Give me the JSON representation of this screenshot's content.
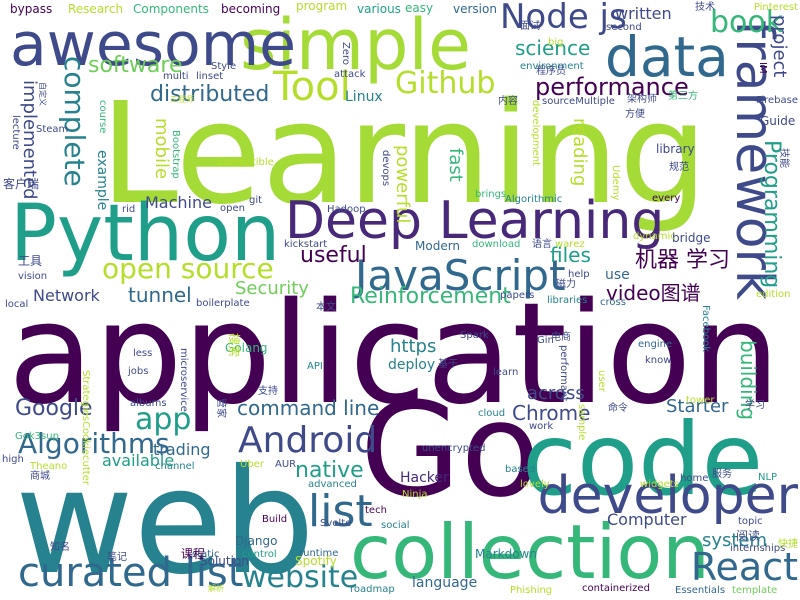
{
  "palette": [
    "#440154",
    "#482878",
    "#3e4a89",
    "#31688e",
    "#26828e",
    "#1f9e89",
    "#35b779",
    "#6ece58",
    "#b5de2b",
    "#fde725"
  ],
  "words": [
    {
      "text": "application",
      "color": "#440154"
    },
    {
      "text": "Learning",
      "color": "#a5db36"
    },
    {
      "text": "Go",
      "color": "#440154"
    },
    {
      "text": "web",
      "color": "#26828e"
    },
    {
      "text": "code",
      "color": "#1f9e89"
    },
    {
      "text": "collection",
      "color": "#35b779"
    },
    {
      "text": "Python",
      "color": "#1f9e89"
    },
    {
      "text": "simple",
      "color": "#a5db36"
    },
    {
      "text": "awesome",
      "color": "#3e4a89"
    },
    {
      "text": "data",
      "color": "#31688e"
    },
    {
      "text": "Deep Learning",
      "color": "#482878"
    },
    {
      "text": "framework",
      "color": "#3e4a89"
    },
    {
      "text": "developer",
      "color": "#3e4a89"
    },
    {
      "text": "JavaScript",
      "color": "#31688e"
    },
    {
      "text": "curated list",
      "color": "#31688e"
    },
    {
      "text": "Android",
      "color": "#3e4a89"
    },
    {
      "text": "React",
      "color": "#31688e"
    },
    {
      "text": "website",
      "color": "#26828e"
    },
    {
      "text": "list",
      "color": "#31688e"
    },
    {
      "text": "Tool",
      "color": "#b5de2b"
    },
    {
      "text": "Node js",
      "color": "#3e4a89"
    },
    {
      "text": "book",
      "color": "#35b779"
    },
    {
      "text": "Github",
      "color": "#b5de2b"
    },
    {
      "text": "complete",
      "color": "#26828e"
    },
    {
      "text": "open source",
      "color": "#b5de2b"
    },
    {
      "text": "app",
      "color": "#1f9e89"
    },
    {
      "text": "Algorithms",
      "color": "#31688e"
    },
    {
      "text": "software",
      "color": "#6ece58"
    },
    {
      "text": "performance",
      "color": "#440154"
    },
    {
      "text": "distributed",
      "color": "#31688e"
    },
    {
      "text": "Programming",
      "color": "#1f9e89"
    },
    {
      "text": "project",
      "color": "#3e4a89"
    },
    {
      "text": "written",
      "color": "#3e4a89"
    },
    {
      "text": "science",
      "color": "#1f9e89"
    },
    {
      "text": "机器 学习",
      "color": "#440154"
    },
    {
      "text": "Reinforcement",
      "color": "#35b779"
    },
    {
      "text": "tunnel",
      "color": "#31688e"
    },
    {
      "text": "Chrome",
      "color": "#3e4a89"
    },
    {
      "text": "command line",
      "color": "#31688e"
    },
    {
      "text": "Google",
      "color": "#3e4a89"
    },
    {
      "text": "native",
      "color": "#1f9e89"
    },
    {
      "text": "building",
      "color": "#35b779"
    },
    {
      "text": "system",
      "color": "#26828e"
    },
    {
      "text": "Starter",
      "color": "#31688e"
    },
    {
      "text": "useful",
      "color": "#440154"
    },
    {
      "text": "files",
      "color": "#1f9e89"
    },
    {
      "text": "video图谱",
      "color": "#440154"
    },
    {
      "text": "Security",
      "color": "#6ece58"
    },
    {
      "text": "across",
      "color": "#3e4a89"
    },
    {
      "text": "https",
      "color": "#26828e"
    },
    {
      "text": "mobile",
      "color": "#b5de2b"
    },
    {
      "text": "implemented",
      "color": "#3e4a89"
    },
    {
      "text": "available",
      "color": "#1f9e89"
    },
    {
      "text": "trading",
      "color": "#31688e"
    },
    {
      "text": "Machine",
      "color": "#3e4a89"
    },
    {
      "text": "Network",
      "color": "#3e4a89"
    },
    {
      "text": "Computer",
      "color": "#3e4a89"
    },
    {
      "text": "reading",
      "color": "#b5de2b"
    },
    {
      "text": "fast",
      "color": "#35b779"
    },
    {
      "text": "powerful",
      "color": "#b5de2b"
    },
    {
      "text": "Linux",
      "color": "#26828e"
    },
    {
      "text": "deploy",
      "color": "#26828e"
    },
    {
      "text": "example",
      "color": "#26828e"
    },
    {
      "text": "use",
      "color": "#31688e"
    },
    {
      "text": "Hacker",
      "color": "#482878"
    },
    {
      "text": "Spotify",
      "color": "#b5de2b"
    },
    {
      "text": "Django",
      "color": "#31688e"
    },
    {
      "text": "Golang",
      "color": "#35b779"
    },
    {
      "text": "Modern",
      "color": "#31688e"
    },
    {
      "text": "bridge",
      "color": "#3e4a89"
    },
    {
      "text": "Guide",
      "color": "#3e4a89"
    },
    {
      "text": "library",
      "color": "#3e4a89"
    },
    {
      "text": "language",
      "color": "#31688e"
    },
    {
      "text": "Markdown",
      "color": "#26828e"
    },
    {
      "text": "Solution",
      "color": "#3e4a89"
    },
    {
      "text": "Research",
      "color": "#b5de2b"
    },
    {
      "text": "Components",
      "color": "#35b779"
    },
    {
      "text": "bypass",
      "color": "#440154"
    },
    {
      "text": "becoming",
      "color": "#440154"
    },
    {
      "text": "program",
      "color": "#b5de2b"
    },
    {
      "text": "various",
      "color": "#1f9e89"
    },
    {
      "text": "easy",
      "color": "#35b779"
    },
    {
      "text": "version",
      "color": "#31688e"
    },
    {
      "text": "environment",
      "color": "#26828e"
    },
    {
      "text": "second",
      "color": "#3e4a89"
    },
    {
      "text": "Style",
      "color": "#3e4a89"
    },
    {
      "text": "lecture",
      "color": "#3e4a89"
    },
    {
      "text": "course",
      "color": "#35b779"
    },
    {
      "text": "Bootstrap",
      "color": "#35b779"
    },
    {
      "text": "git",
      "color": "#3e4a89"
    },
    {
      "text": "open",
      "color": "#3e4a89"
    },
    {
      "text": "rid",
      "color": "#3e4a89"
    },
    {
      "text": "Hadoop",
      "color": "#3e4a89"
    },
    {
      "text": "kickstart",
      "color": "#3e4a89"
    },
    {
      "text": "devops",
      "color": "#3e4a89"
    },
    {
      "text": "development",
      "color": "#b5de2b"
    },
    {
      "text": "Algorithmic",
      "color": "#26828e"
    },
    {
      "text": "brings",
      "color": "#35b779"
    },
    {
      "text": "Udemy",
      "color": "#b5de2b"
    },
    {
      "text": "every",
      "color": "#440154"
    },
    {
      "text": "download",
      "color": "#35b779"
    },
    {
      "text": "dynamic",
      "color": "#b5de2b"
    },
    {
      "text": "help",
      "color": "#3e4a89"
    },
    {
      "text": "papers",
      "color": "#3e4a89"
    },
    {
      "text": "libraries",
      "color": "#26828e"
    },
    {
      "text": "cross",
      "color": "#31688e"
    },
    {
      "text": "edition",
      "color": "#b5de2b"
    },
    {
      "text": "Facebook",
      "color": "#26828e"
    },
    {
      "text": "engine",
      "color": "#31688e"
    },
    {
      "text": "know",
      "color": "#3e4a89"
    },
    {
      "text": "API",
      "color": "#26828e"
    },
    {
      "text": "learn",
      "color": "#3e4a89"
    },
    {
      "text": "cloud",
      "color": "#26828e"
    },
    {
      "text": "work",
      "color": "#3e4a89"
    },
    {
      "text": "sample",
      "color": "#b5de2b"
    },
    {
      "text": "user",
      "color": "#b5de2b"
    },
    {
      "text": "home",
      "color": "#3e4a89"
    },
    {
      "text": "NLP",
      "color": "#1f9e89"
    },
    {
      "text": "based",
      "color": "#26828e"
    },
    {
      "text": "lovely",
      "color": "#b5de2b"
    },
    {
      "text": "unencrypted",
      "color": "#3e4a89"
    },
    {
      "text": "tech",
      "color": "#440154"
    },
    {
      "text": "social",
      "color": "#26828e"
    },
    {
      "text": "runtime",
      "color": "#31688e"
    },
    {
      "text": "roadmap",
      "color": "#26828e"
    },
    {
      "text": "Phishing",
      "color": "#b5de2b"
    },
    {
      "text": "Essentials",
      "color": "#31688e"
    },
    {
      "text": "template",
      "color": "#6ece58"
    },
    {
      "text": "containerized",
      "color": "#440154"
    },
    {
      "text": "Build",
      "color": "#440154"
    },
    {
      "text": "control",
      "color": "#1f9e89"
    },
    {
      "text": "static",
      "color": "#31688e"
    },
    {
      "text": "Uber",
      "color": "#b5de2b"
    },
    {
      "text": "advanced",
      "color": "#26828e"
    },
    {
      "text": "channel",
      "color": "#26828e"
    },
    {
      "text": "high",
      "color": "#3e4a89"
    },
    {
      "text": "Theano",
      "color": "#b5de2b"
    },
    {
      "text": "vision",
      "color": "#3e4a89"
    },
    {
      "text": "local",
      "color": "#3e4a89"
    },
    {
      "text": "boilerplate",
      "color": "#3e4a89"
    },
    {
      "text": "less",
      "color": "#3e4a89"
    },
    {
      "text": "jobs",
      "color": "#3e4a89"
    },
    {
      "text": "albums",
      "color": "#3e4a89"
    },
    {
      "text": "microservice",
      "color": "#3e4a89"
    },
    {
      "text": "Spark",
      "color": "#3e4a89"
    },
    {
      "text": "Gin",
      "color": "#3e4a89"
    },
    {
      "text": "performant",
      "color": "#3e4a89"
    },
    {
      "text": "tower",
      "color": "#b5de2b"
    },
    {
      "text": "topic",
      "color": "#3e4a89"
    },
    {
      "text": "internships",
      "color": "#3e4a89"
    },
    {
      "text": "Firebase",
      "color": "#3e4a89"
    },
    {
      "text": "Pinterest",
      "color": "#b5de2b"
    },
    {
      "text": "sourceMultiple",
      "color": "#3e4a89"
    },
    {
      "text": "Svelte",
      "color": "#3e4a89"
    },
    {
      "text": "Ninja",
      "color": "#b5de2b"
    },
    {
      "text": "widgets",
      "color": "#b5de2b"
    },
    {
      "text": "AUR",
      "color": "#3e4a89"
    },
    {
      "text": "warez",
      "color": "#b5de2b"
    },
    {
      "text": "compatible",
      "color": "#b5de2b"
    },
    {
      "text": "Steam",
      "color": "#3e4a89"
    },
    {
      "text": "multi",
      "color": "#3e4a89"
    },
    {
      "text": "linset",
      "color": "#3e4a89"
    },
    {
      "text": "attack",
      "color": "#3e4a89"
    },
    {
      "text": "Zero",
      "color": "#3e4a89"
    },
    {
      "text": "big",
      "color": "#b5de2b"
    },
    {
      "text": "IM",
      "color": "#440154"
    },
    {
      "text": "Gok3sup",
      "color": "#35b779"
    },
    {
      "text": "StrategiesCookiecutter",
      "color": "#b5de2b"
    },
    {
      "text": "技术",
      "color": "#3e4a89"
    },
    {
      "text": "面试",
      "color": "#3e4a89"
    },
    {
      "text": "程序员",
      "color": "#3e4a89"
    },
    {
      "text": "内容",
      "color": "#3e4a89"
    },
    {
      "text": "架构师",
      "color": "#3e4a89"
    },
    {
      "text": "方便",
      "color": "#3e4a89"
    },
    {
      "text": "第三方",
      "color": "#35b779"
    },
    {
      "text": "技能",
      "color": "#3e4a89"
    },
    {
      "text": "规范",
      "color": "#3e4a89"
    },
    {
      "text": "客户端",
      "color": "#3e4a89"
    },
    {
      "text": "工具",
      "color": "#3e4a89"
    },
    {
      "text": "磁力",
      "color": "#3e4a89"
    },
    {
      "text": "语言",
      "color": "#3e4a89"
    },
    {
      "text": "本文",
      "color": "#3e4a89"
    },
    {
      "text": "搜索",
      "color": "#b5de2b"
    },
    {
      "text": "电商",
      "color": "#3e4a89"
    },
    {
      "text": "支持",
      "color": "#3e4a89"
    },
    {
      "text": "基于",
      "color": "#3e4a89"
    },
    {
      "text": "命令",
      "color": "#3e4a89"
    },
    {
      "text": "学习",
      "color": "#3e4a89"
    },
    {
      "text": "管家",
      "color": "#3e4a89"
    },
    {
      "text": "服务",
      "color": "#3e4a89"
    },
    {
      "text": "阅读",
      "color": "#3e4a89"
    },
    {
      "text": "课程",
      "color": "#440154"
    },
    {
      "text": "笔记",
      "color": "#3e4a89"
    },
    {
      "text": "知名",
      "color": "#3e4a89"
    },
    {
      "text": "商城",
      "color": "#3e4a89"
    },
    {
      "text": "快捷",
      "color": "#b5de2b"
    },
    {
      "text": "自定义",
      "color": "#3e4a89"
    },
    {
      "text": "工程师",
      "color": "#b5de2b"
    },
    {
      "text": "解析",
      "color": "#b5de2b"
    }
  ]
}
